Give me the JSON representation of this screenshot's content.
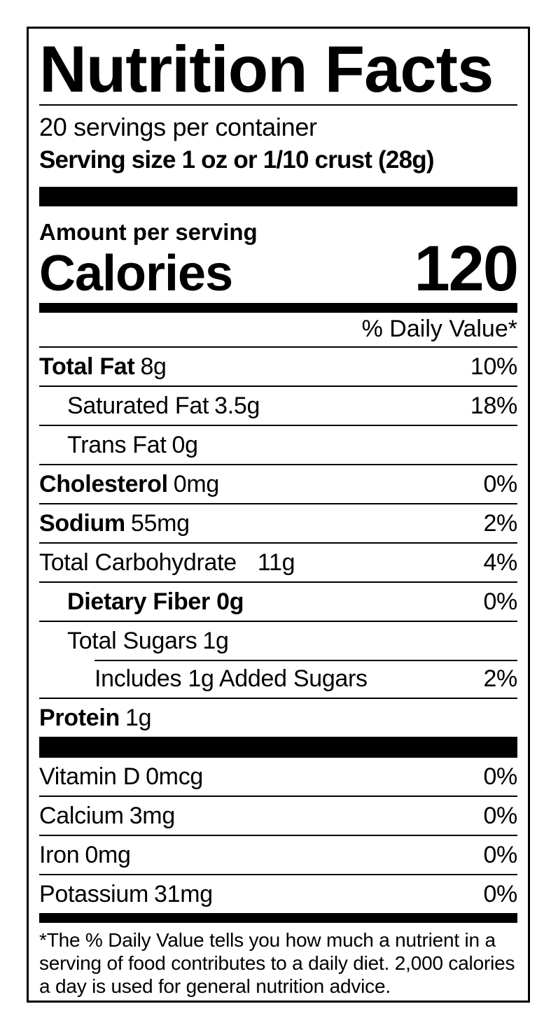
{
  "label": {
    "title": "Nutrition Facts",
    "servings_per_container": "20 servings per container",
    "serving_size": "Serving size 1 oz or 1/10 crust (28g)",
    "amount_per_serving": "Amount per serving",
    "calories_label": "Calories",
    "calories_value": "120",
    "daily_value_header": "% Daily Value*",
    "rows": [
      {
        "label": "Total Fat",
        "amount": "8g",
        "dv": "10%"
      },
      {
        "label": "Saturated Fat",
        "amount": "3.5g",
        "dv": "18%"
      },
      {
        "label": "Trans Fat",
        "amount": "0g",
        "dv": ""
      },
      {
        "label": "Cholesterol",
        "amount": "0mg",
        "dv": "0%"
      },
      {
        "label": "Sodium",
        "amount": "55mg",
        "dv": "2%"
      },
      {
        "label": "Total Carbohydrate",
        "amount": "11g",
        "dv": "4%"
      },
      {
        "label": "Dietary Fiber 0g",
        "amount": "",
        "dv": "0%"
      },
      {
        "label": "Total Sugars",
        "amount": "1g",
        "dv": ""
      },
      {
        "label": "Includes 1g Added Sugars",
        "amount": "",
        "dv": "2%"
      },
      {
        "label": "Protein",
        "amount": "1g",
        "dv": ""
      },
      {
        "label": "Vitamin D",
        "amount": "0mcg",
        "dv": "0%"
      },
      {
        "label": "Calcium",
        "amount": "3mg",
        "dv": "0%"
      },
      {
        "label": "Iron",
        "amount": "0mg",
        "dv": "0%"
      },
      {
        "label": "Potassium",
        "amount": "31mg",
        "dv": "0%"
      }
    ],
    "footnote": "*The % Daily Value tells you how much a nutrient in a serving of food contributes to a daily diet. 2,000 calories a day is used for general nutrition advice.",
    "colors": {
      "ink": "#000000",
      "background": "#ffffff"
    }
  }
}
